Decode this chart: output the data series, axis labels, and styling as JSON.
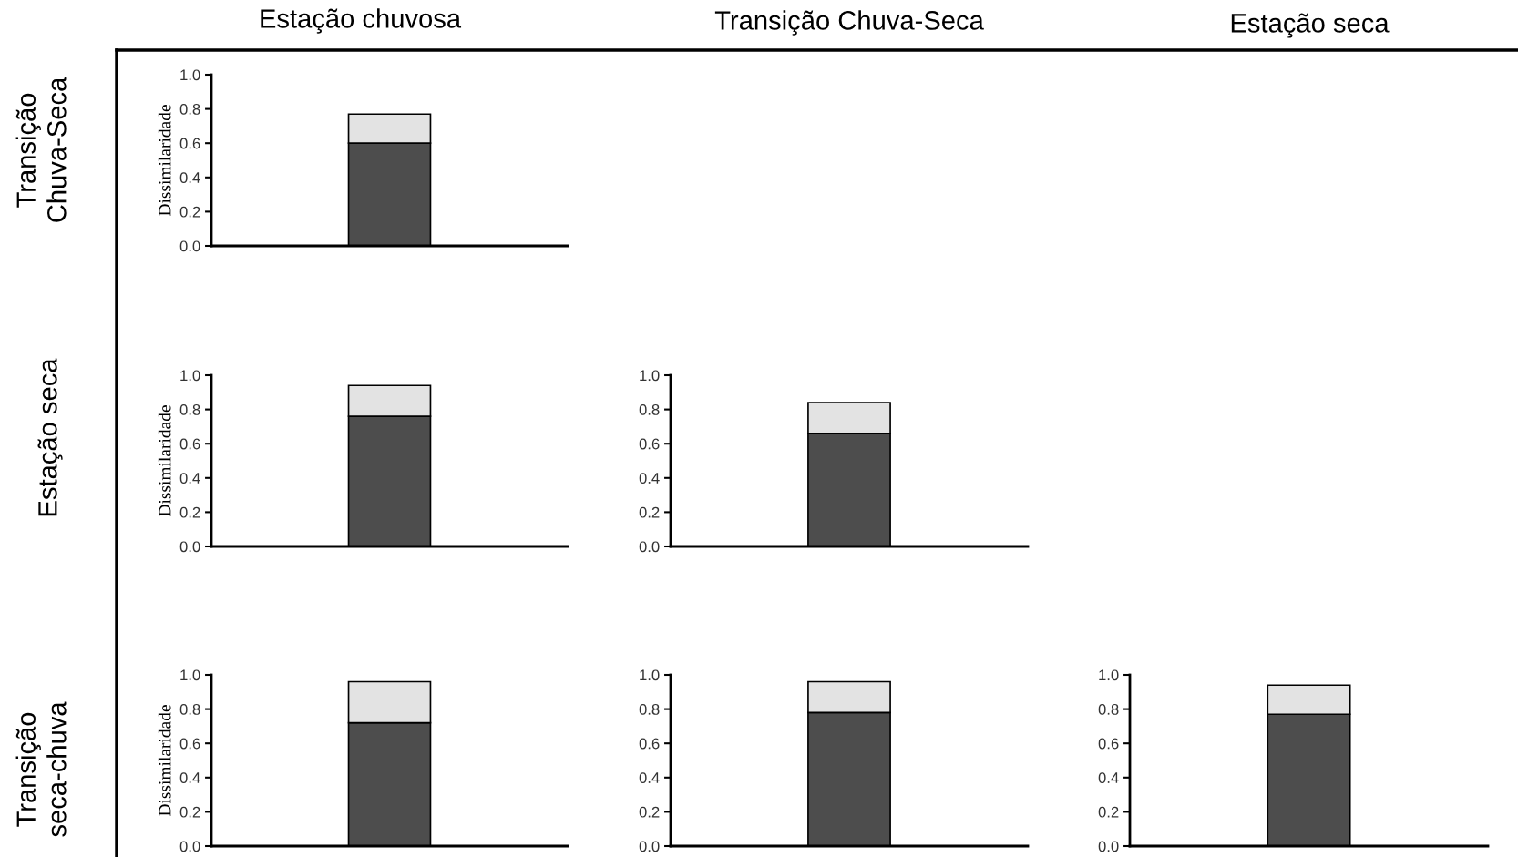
{
  "chart_data": [
    {
      "type": "other",
      "annotations": [
        "Estação chuvosa",
        "Transição Chuva-Seca",
        "Estação seca",
        "Transição\nChuva-Seca",
        "Estação seca",
        "Transição\nseca-chuva"
      ]
    },
    {
      "type": "bar",
      "stacked": true,
      "categories": [
        null
      ],
      "ylabel": "Dissimilaridade",
      "ylim": [
        0,
        1
      ],
      "yticks": [
        {
          "value": 0,
          "label": "0.0"
        },
        {
          "value": 0.2,
          "label": "0.2"
        },
        {
          "value": 0.4,
          "label": "0.4"
        },
        {
          "value": 0.6,
          "label": "0.6"
        },
        {
          "value": 0.8,
          "label": "0.8"
        },
        {
          "value": 1,
          "label": "1.0"
        }
      ],
      "tick_labels": "y",
      "series": [
        {
          "color": "#4d4d4d",
          "values": [
            0.6
          ]
        },
        {
          "color": "#e3e3e3",
          "values": [
            0.17
          ]
        }
      ]
    },
    {
      "type": "bar",
      "stacked": true,
      "categories": [
        null
      ],
      "ylabel": "Dissimilaridade",
      "ylim": [
        0,
        1
      ],
      "yticks": [
        {
          "value": 0,
          "label": "0.0"
        },
        {
          "value": 0.2,
          "label": "0.2"
        },
        {
          "value": 0.4,
          "label": "0.4"
        },
        {
          "value": 0.6,
          "label": "0.6"
        },
        {
          "value": 0.8,
          "label": "0.8"
        },
        {
          "value": 1,
          "label": "1.0"
        }
      ],
      "tick_labels": "y",
      "series": [
        {
          "color": "#4d4d4d",
          "values": [
            0.76
          ]
        },
        {
          "color": "#e3e3e3",
          "values": [
            0.18
          ]
        }
      ]
    },
    {
      "type": "bar",
      "stacked": true,
      "categories": [
        null
      ],
      "ylim": [
        0,
        1
      ],
      "yticks": [
        {
          "value": 0,
          "label": "0.0"
        },
        {
          "value": 0.2,
          "label": "0.2"
        },
        {
          "value": 0.4,
          "label": "0.4"
        },
        {
          "value": 0.6,
          "label": "0.6"
        },
        {
          "value": 0.8,
          "label": "0.8"
        },
        {
          "value": 1,
          "label": "1.0"
        }
      ],
      "tick_labels": "y",
      "series": [
        {
          "color": "#4d4d4d",
          "values": [
            0.66
          ]
        },
        {
          "color": "#e3e3e3",
          "values": [
            0.18
          ]
        }
      ]
    },
    {
      "type": "bar",
      "stacked": true,
      "categories": [
        null
      ],
      "ylabel": "Dissimilaridade",
      "ylim": [
        0,
        1
      ],
      "yticks": [
        {
          "value": 0,
          "label": "0.0"
        },
        {
          "value": 0.2,
          "label": "0.2"
        },
        {
          "value": 0.4,
          "label": "0.4"
        },
        {
          "value": 0.6,
          "label": "0.6"
        },
        {
          "value": 0.8,
          "label": "0.8"
        },
        {
          "value": 1,
          "label": "1.0"
        }
      ],
      "tick_labels": "y",
      "series": [
        {
          "color": "#4d4d4d",
          "values": [
            0.72
          ]
        },
        {
          "color": "#e3e3e3",
          "values": [
            0.24
          ]
        }
      ]
    },
    {
      "type": "bar",
      "stacked": true,
      "categories": [
        null
      ],
      "ylim": [
        0,
        1
      ],
      "yticks": [
        {
          "value": 0,
          "label": "0.0"
        },
        {
          "value": 0.2,
          "label": "0.2"
        },
        {
          "value": 0.4,
          "label": "0.4"
        },
        {
          "value": 0.6,
          "label": "0.6"
        },
        {
          "value": 0.8,
          "label": "0.8"
        },
        {
          "value": 1,
          "label": "1.0"
        }
      ],
      "tick_labels": "y",
      "series": [
        {
          "color": "#4d4d4d",
          "values": [
            0.78
          ]
        },
        {
          "color": "#e3e3e3",
          "values": [
            0.18
          ]
        }
      ]
    },
    {
      "type": "bar",
      "stacked": true,
      "categories": [
        null
      ],
      "ylim": [
        0,
        1
      ],
      "yticks": [
        {
          "value": 0,
          "label": "0.0"
        },
        {
          "value": 0.2,
          "label": "0.2"
        },
        {
          "value": 0.4,
          "label": "0.4"
        },
        {
          "value": 0.6,
          "label": "0.6"
        },
        {
          "value": 0.8,
          "label": "0.8"
        },
        {
          "value": 1,
          "label": "1.0"
        }
      ],
      "tick_labels": "y",
      "series": [
        {
          "color": "#4d4d4d",
          "values": [
            0.77
          ]
        },
        {
          "color": "#e3e3e3",
          "values": [
            0.17
          ]
        }
      ]
    }
  ]
}
